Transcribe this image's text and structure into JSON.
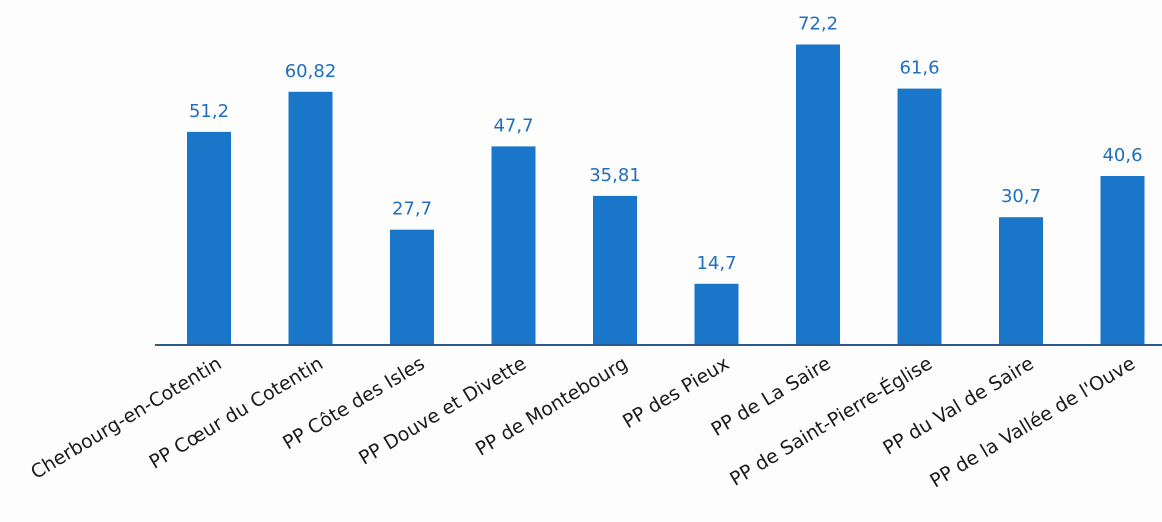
{
  "chart_data": {
    "type": "bar",
    "categories": [
      "Cherbourg-en-Cotentin",
      "PP Cœur du Cotentin",
      "PP Côte des Isles",
      "PP Douve et Divette",
      "PP de Montebourg",
      "PP des Pieux",
      "PP de La Saire",
      "PP de Saint-Pierre-Église",
      "PP du Val de Saire",
      "PP de la Vallée de l'Ouve"
    ],
    "values": [
      51.2,
      60.82,
      27.7,
      47.7,
      35.81,
      14.7,
      72.2,
      61.6,
      30.7,
      40.6
    ],
    "value_labels": [
      "51,2",
      "60,82",
      "27,7",
      "47,7",
      "35,81",
      "14,7",
      "72,2",
      "61,6",
      "30,7",
      "40,6"
    ],
    "ylim": [
      0,
      80
    ],
    "y_axis_visible": false,
    "grid": false,
    "legend": "none",
    "colors": {
      "bar": "#1a76c8",
      "value_label": "#1f6fbe",
      "category_label": "#1a1a1a",
      "axis": "#2b5c8c"
    }
  }
}
